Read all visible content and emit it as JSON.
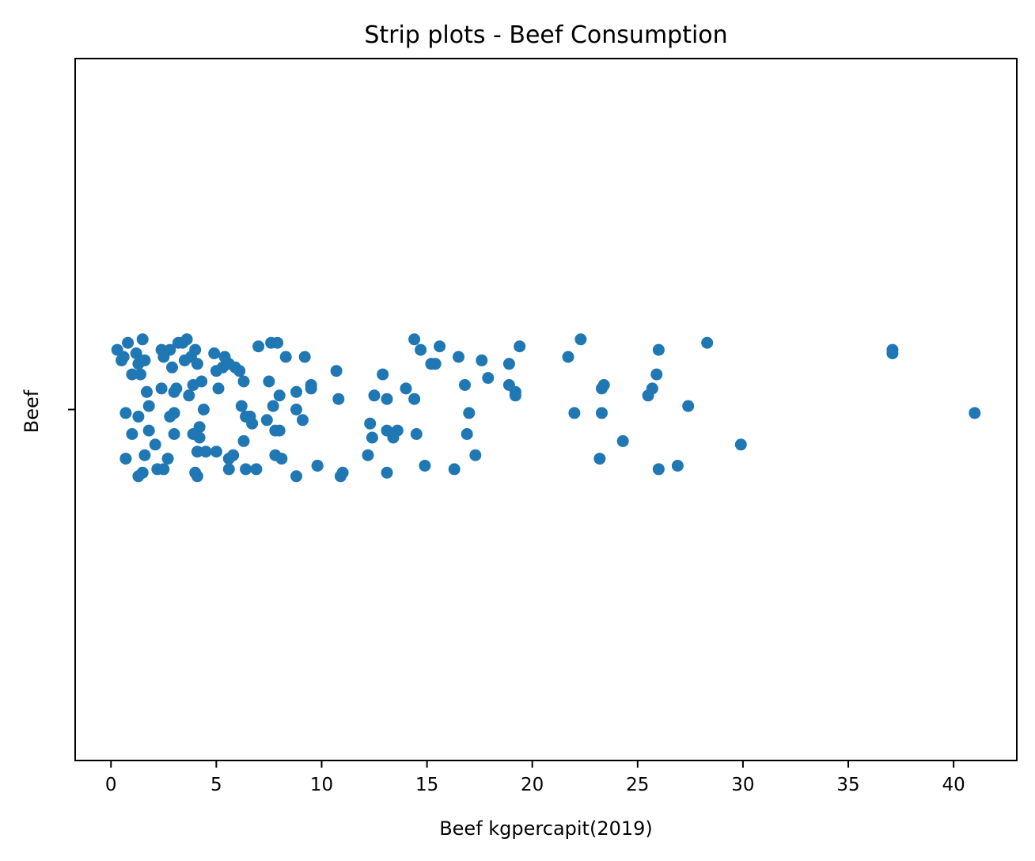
{
  "chart_data": {
    "type": "scatter",
    "subtype": "strip",
    "title": "Strip plots - Beef Consumption",
    "xlabel": "Beef kgpercapit(2019)",
    "ylabel": "Beef",
    "category": "Beef",
    "x_ticks": [
      0,
      5,
      10,
      15,
      20,
      25,
      30,
      35,
      40
    ],
    "xlim": [
      -1.7,
      43.0
    ],
    "ylim": [
      -1.0,
      1.0
    ],
    "grid": false,
    "legend": "none",
    "marker_color": "#1f77b4",
    "points": [
      {
        "x": 0.3,
        "y": 0.17
      },
      {
        "x": 0.5,
        "y": 0.14
      },
      {
        "x": 0.6,
        "y": 0.15
      },
      {
        "x": 0.8,
        "y": 0.19
      },
      {
        "x": 1.0,
        "y": 0.1
      },
      {
        "x": 1.2,
        "y": 0.16
      },
      {
        "x": 1.3,
        "y": 0.13
      },
      {
        "x": 1.4,
        "y": 0.1
      },
      {
        "x": 1.5,
        "y": 0.2
      },
      {
        "x": 1.6,
        "y": 0.14
      },
      {
        "x": 1.7,
        "y": 0.05
      },
      {
        "x": 1.8,
        "y": 0.01
      },
      {
        "x": 0.7,
        "y": -0.01
      },
      {
        "x": 1.0,
        "y": -0.07
      },
      {
        "x": 1.3,
        "y": -0.02
      },
      {
        "x": 1.8,
        "y": -0.06
      },
      {
        "x": 2.1,
        "y": -0.1
      },
      {
        "x": 0.7,
        "y": -0.14
      },
      {
        "x": 1.6,
        "y": -0.13
      },
      {
        "x": 1.5,
        "y": -0.18
      },
      {
        "x": 1.3,
        "y": -0.19
      },
      {
        "x": 2.2,
        "y": -0.17
      },
      {
        "x": 2.5,
        "y": -0.17
      },
      {
        "x": 2.7,
        "y": -0.14
      },
      {
        "x": 2.4,
        "y": 0.17
      },
      {
        "x": 2.5,
        "y": 0.15
      },
      {
        "x": 2.8,
        "y": 0.17
      },
      {
        "x": 2.9,
        "y": 0.12
      },
      {
        "x": 3.2,
        "y": 0.19
      },
      {
        "x": 3.4,
        "y": 0.19
      },
      {
        "x": 3.6,
        "y": 0.2
      },
      {
        "x": 3.5,
        "y": 0.14
      },
      {
        "x": 3.8,
        "y": 0.15
      },
      {
        "x": 4.0,
        "y": 0.17
      },
      {
        "x": 4.1,
        "y": 0.13
      },
      {
        "x": 2.4,
        "y": 0.06
      },
      {
        "x": 3.0,
        "y": 0.05
      },
      {
        "x": 3.1,
        "y": 0.06
      },
      {
        "x": 3.7,
        "y": 0.04
      },
      {
        "x": 3.9,
        "y": 0.07
      },
      {
        "x": 4.3,
        "y": 0.08
      },
      {
        "x": 2.8,
        "y": -0.02
      },
      {
        "x": 3.0,
        "y": -0.01
      },
      {
        "x": 3.0,
        "y": -0.07
      },
      {
        "x": 3.9,
        "y": -0.07
      },
      {
        "x": 4.2,
        "y": -0.05
      },
      {
        "x": 4.2,
        "y": -0.08
      },
      {
        "x": 4.4,
        "y": 0.0
      },
      {
        "x": 4.1,
        "y": -0.12
      },
      {
        "x": 4.5,
        "y": -0.12
      },
      {
        "x": 4.0,
        "y": -0.18
      },
      {
        "x": 4.1,
        "y": -0.19
      },
      {
        "x": 4.9,
        "y": 0.16
      },
      {
        "x": 5.3,
        "y": 0.12
      },
      {
        "x": 5.4,
        "y": 0.15
      },
      {
        "x": 5.6,
        "y": 0.13
      },
      {
        "x": 5.9,
        "y": 0.12
      },
      {
        "x": 6.1,
        "y": 0.11
      },
      {
        "x": 5.0,
        "y": 0.11
      },
      {
        "x": 5.1,
        "y": 0.06
      },
      {
        "x": 6.3,
        "y": 0.08
      },
      {
        "x": 6.2,
        "y": 0.01
      },
      {
        "x": 6.4,
        "y": -0.02
      },
      {
        "x": 6.6,
        "y": -0.02
      },
      {
        "x": 6.7,
        "y": -0.04
      },
      {
        "x": 6.3,
        "y": -0.09
      },
      {
        "x": 5.0,
        "y": -0.12
      },
      {
        "x": 5.8,
        "y": -0.13
      },
      {
        "x": 5.6,
        "y": -0.14
      },
      {
        "x": 5.6,
        "y": -0.17
      },
      {
        "x": 6.4,
        "y": -0.17
      },
      {
        "x": 6.9,
        "y": -0.17
      },
      {
        "x": 7.0,
        "y": 0.18
      },
      {
        "x": 7.6,
        "y": 0.19
      },
      {
        "x": 7.9,
        "y": 0.19
      },
      {
        "x": 8.3,
        "y": 0.15
      },
      {
        "x": 7.5,
        "y": 0.08
      },
      {
        "x": 7.7,
        "y": 0.01
      },
      {
        "x": 8.0,
        "y": 0.04
      },
      {
        "x": 7.4,
        "y": -0.03
      },
      {
        "x": 7.8,
        "y": -0.06
      },
      {
        "x": 8.0,
        "y": -0.06
      },
      {
        "x": 7.8,
        "y": -0.13
      },
      {
        "x": 8.1,
        "y": -0.14
      },
      {
        "x": 8.8,
        "y": 0.05
      },
      {
        "x": 8.8,
        "y": 0.0
      },
      {
        "x": 9.1,
        "y": -0.03
      },
      {
        "x": 8.8,
        "y": -0.19
      },
      {
        "x": 9.2,
        "y": 0.15
      },
      {
        "x": 9.5,
        "y": 0.07
      },
      {
        "x": 9.5,
        "y": 0.06
      },
      {
        "x": 9.8,
        "y": -0.16
      },
      {
        "x": 9.8,
        "y": -0.16
      },
      {
        "x": 10.7,
        "y": 0.11
      },
      {
        "x": 10.8,
        "y": 0.03
      },
      {
        "x": 10.9,
        "y": -0.19
      },
      {
        "x": 11.0,
        "y": -0.18
      },
      {
        "x": 12.3,
        "y": -0.04
      },
      {
        "x": 12.4,
        "y": -0.08
      },
      {
        "x": 12.2,
        "y": -0.13
      },
      {
        "x": 12.5,
        "y": 0.04
      },
      {
        "x": 12.9,
        "y": 0.1
      },
      {
        "x": 13.1,
        "y": 0.03
      },
      {
        "x": 13.1,
        "y": -0.06
      },
      {
        "x": 13.4,
        "y": -0.08
      },
      {
        "x": 13.6,
        "y": -0.06
      },
      {
        "x": 13.1,
        "y": -0.18
      },
      {
        "x": 14.0,
        "y": 0.06
      },
      {
        "x": 14.4,
        "y": 0.03
      },
      {
        "x": 14.5,
        "y": -0.07
      },
      {
        "x": 14.4,
        "y": 0.2
      },
      {
        "x": 14.7,
        "y": 0.17
      },
      {
        "x": 15.2,
        "y": 0.13
      },
      {
        "x": 15.4,
        "y": 0.13
      },
      {
        "x": 15.6,
        "y": 0.18
      },
      {
        "x": 14.9,
        "y": -0.16
      },
      {
        "x": 16.3,
        "y": -0.17
      },
      {
        "x": 16.5,
        "y": 0.15
      },
      {
        "x": 16.8,
        "y": 0.07
      },
      {
        "x": 17.0,
        "y": -0.01
      },
      {
        "x": 16.9,
        "y": -0.07
      },
      {
        "x": 17.3,
        "y": -0.13
      },
      {
        "x": 17.6,
        "y": 0.14
      },
      {
        "x": 17.9,
        "y": 0.09
      },
      {
        "x": 18.9,
        "y": 0.13
      },
      {
        "x": 18.9,
        "y": 0.07
      },
      {
        "x": 19.2,
        "y": 0.05
      },
      {
        "x": 19.2,
        "y": 0.04
      },
      {
        "x": 19.4,
        "y": 0.18
      },
      {
        "x": 21.7,
        "y": 0.15
      },
      {
        "x": 22.3,
        "y": 0.2
      },
      {
        "x": 22.0,
        "y": -0.01
      },
      {
        "x": 23.3,
        "y": 0.06
      },
      {
        "x": 23.4,
        "y": 0.07
      },
      {
        "x": 23.3,
        "y": -0.01
      },
      {
        "x": 23.2,
        "y": -0.14
      },
      {
        "x": 24.3,
        "y": -0.09
      },
      {
        "x": 25.5,
        "y": 0.04
      },
      {
        "x": 25.7,
        "y": 0.06
      },
      {
        "x": 25.9,
        "y": 0.1
      },
      {
        "x": 26.0,
        "y": 0.17
      },
      {
        "x": 26.0,
        "y": -0.17
      },
      {
        "x": 26.9,
        "y": -0.16
      },
      {
        "x": 27.4,
        "y": 0.01
      },
      {
        "x": 28.3,
        "y": 0.19
      },
      {
        "x": 29.9,
        "y": -0.1
      },
      {
        "x": 37.1,
        "y": 0.17
      },
      {
        "x": 37.1,
        "y": 0.16
      },
      {
        "x": 41.0,
        "y": -0.01
      }
    ]
  }
}
